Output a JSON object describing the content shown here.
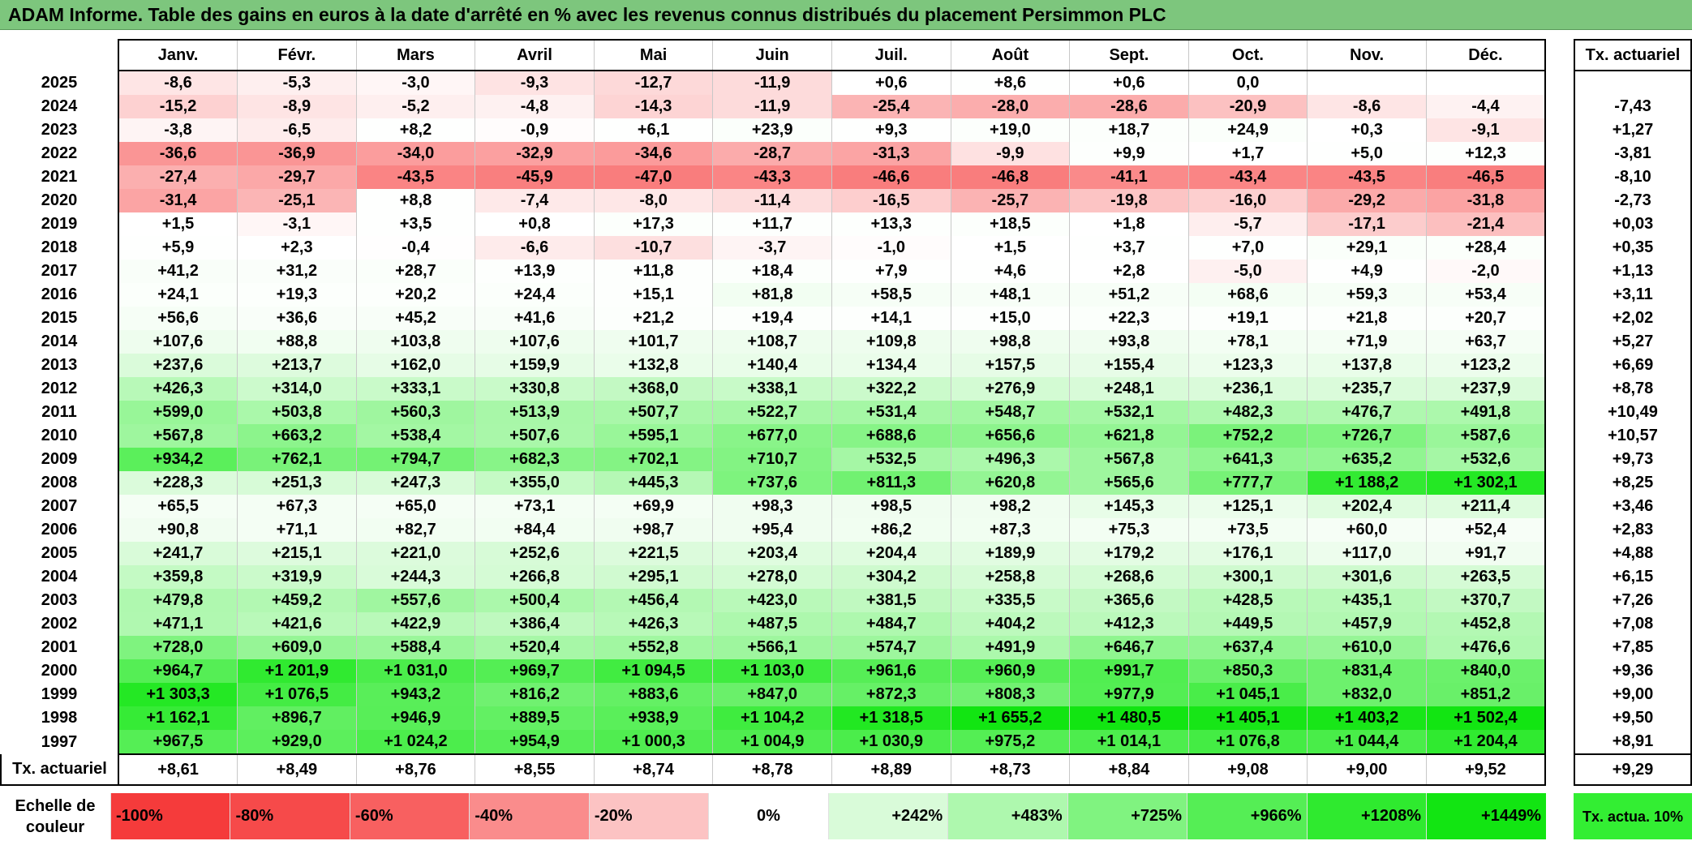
{
  "title": "ADAM Informe. Table des gains en euros à la date d'arrêté en % avec les revenus connus distribués du placement Persimmon PLC",
  "chart_data": {
    "type": "table",
    "columns": [
      "Janv.",
      "Févr.",
      "Mars",
      "Avril",
      "Mai",
      "Juin",
      "Juil.",
      "Août",
      "Sept.",
      "Oct.",
      "Nov.",
      "Déc."
    ],
    "ta_header": "Tx. actuariel",
    "rows": [
      {
        "year": "2025",
        "values": [
          "-8,6",
          "-5,3",
          "-3,0",
          "-9,3",
          "-12,7",
          "-11,9",
          "+0,6",
          "+8,6",
          "+0,6",
          "0,0",
          "",
          ""
        ],
        "ta": ""
      },
      {
        "year": "2024",
        "values": [
          "-15,2",
          "-8,9",
          "-5,2",
          "-4,8",
          "-14,3",
          "-11,9",
          "-25,4",
          "-28,0",
          "-28,6",
          "-20,9",
          "-8,6",
          "-4,4"
        ],
        "ta": "-7,43"
      },
      {
        "year": "2023",
        "values": [
          "-3,8",
          "-6,5",
          "+8,2",
          "-0,9",
          "+6,1",
          "+23,9",
          "+9,3",
          "+19,0",
          "+18,7",
          "+24,9",
          "+0,3",
          "-9,1"
        ],
        "ta": "+1,27"
      },
      {
        "year": "2022",
        "values": [
          "-36,6",
          "-36,9",
          "-34,0",
          "-32,9",
          "-34,6",
          "-28,7",
          "-31,3",
          "-9,9",
          "+9,9",
          "+1,7",
          "+5,0",
          "+12,3"
        ],
        "ta": "-3,81"
      },
      {
        "year": "2021",
        "values": [
          "-27,4",
          "-29,7",
          "-43,5",
          "-45,9",
          "-47,0",
          "-43,3",
          "-46,6",
          "-46,8",
          "-41,1",
          "-43,4",
          "-43,5",
          "-46,5"
        ],
        "ta": "-8,10"
      },
      {
        "year": "2020",
        "values": [
          "-31,4",
          "-25,1",
          "+8,8",
          "-7,4",
          "-8,0",
          "-11,4",
          "-16,5",
          "-25,7",
          "-19,8",
          "-16,0",
          "-29,2",
          "-31,8"
        ],
        "ta": "-2,73"
      },
      {
        "year": "2019",
        "values": [
          "+1,5",
          "-3,1",
          "+3,5",
          "+0,8",
          "+17,3",
          "+11,7",
          "+13,3",
          "+18,5",
          "+1,8",
          "-5,7",
          "-17,1",
          "-21,4"
        ],
        "ta": "+0,03"
      },
      {
        "year": "2018",
        "values": [
          "+5,9",
          "+2,3",
          "-0,4",
          "-6,6",
          "-10,7",
          "-3,7",
          "-1,0",
          "+1,5",
          "+3,7",
          "+7,0",
          "+29,1",
          "+28,4"
        ],
        "ta": "+0,35"
      },
      {
        "year": "2017",
        "values": [
          "+41,2",
          "+31,2",
          "+28,7",
          "+13,9",
          "+11,8",
          "+18,4",
          "+7,9",
          "+4,6",
          "+2,8",
          "-5,0",
          "+4,9",
          "-2,0"
        ],
        "ta": "+1,13"
      },
      {
        "year": "2016",
        "values": [
          "+24,1",
          "+19,3",
          "+20,2",
          "+24,4",
          "+15,1",
          "+81,8",
          "+58,5",
          "+48,1",
          "+51,2",
          "+68,6",
          "+59,3",
          "+53,4"
        ],
        "ta": "+3,11"
      },
      {
        "year": "2015",
        "values": [
          "+56,6",
          "+36,6",
          "+45,2",
          "+41,6",
          "+21,2",
          "+19,4",
          "+14,1",
          "+15,0",
          "+22,3",
          "+19,1",
          "+21,8",
          "+20,7"
        ],
        "ta": "+2,02"
      },
      {
        "year": "2014",
        "values": [
          "+107,6",
          "+88,8",
          "+103,8",
          "+107,6",
          "+101,7",
          "+108,7",
          "+109,8",
          "+98,8",
          "+93,8",
          "+78,1",
          "+71,9",
          "+63,7"
        ],
        "ta": "+5,27"
      },
      {
        "year": "2013",
        "values": [
          "+237,6",
          "+213,7",
          "+162,0",
          "+159,9",
          "+132,8",
          "+140,4",
          "+134,4",
          "+157,5",
          "+155,4",
          "+123,3",
          "+137,8",
          "+123,2"
        ],
        "ta": "+6,69"
      },
      {
        "year": "2012",
        "values": [
          "+426,3",
          "+314,0",
          "+333,1",
          "+330,8",
          "+368,0",
          "+338,1",
          "+322,2",
          "+276,9",
          "+248,1",
          "+236,1",
          "+235,7",
          "+237,9"
        ],
        "ta": "+8,78"
      },
      {
        "year": "2011",
        "values": [
          "+599,0",
          "+503,8",
          "+560,3",
          "+513,9",
          "+507,7",
          "+522,7",
          "+531,4",
          "+548,7",
          "+532,1",
          "+482,3",
          "+476,7",
          "+491,8"
        ],
        "ta": "+10,49"
      },
      {
        "year": "2010",
        "values": [
          "+567,8",
          "+663,2",
          "+538,4",
          "+507,6",
          "+595,1",
          "+677,0",
          "+688,6",
          "+656,6",
          "+621,8",
          "+752,2",
          "+726,7",
          "+587,6"
        ],
        "ta": "+10,57"
      },
      {
        "year": "2009",
        "values": [
          "+934,2",
          "+762,1",
          "+794,7",
          "+682,3",
          "+702,1",
          "+710,7",
          "+532,5",
          "+496,3",
          "+567,8",
          "+641,3",
          "+635,2",
          "+532,6"
        ],
        "ta": "+9,73"
      },
      {
        "year": "2008",
        "values": [
          "+228,3",
          "+251,3",
          "+247,3",
          "+355,0",
          "+445,3",
          "+737,6",
          "+811,3",
          "+620,8",
          "+565,6",
          "+777,7",
          "+1 188,2",
          "+1 302,1"
        ],
        "ta": "+8,25"
      },
      {
        "year": "2007",
        "values": [
          "+65,5",
          "+67,3",
          "+65,0",
          "+73,1",
          "+69,9",
          "+98,3",
          "+98,5",
          "+98,2",
          "+145,3",
          "+125,1",
          "+202,4",
          "+211,4"
        ],
        "ta": "+3,46"
      },
      {
        "year": "2006",
        "values": [
          "+90,8",
          "+71,1",
          "+82,7",
          "+84,4",
          "+98,7",
          "+95,4",
          "+86,2",
          "+87,3",
          "+75,3",
          "+73,5",
          "+60,0",
          "+52,4"
        ],
        "ta": "+2,83"
      },
      {
        "year": "2005",
        "values": [
          "+241,7",
          "+215,1",
          "+221,0",
          "+252,6",
          "+221,5",
          "+203,4",
          "+204,4",
          "+189,9",
          "+179,2",
          "+176,1",
          "+117,0",
          "+91,7"
        ],
        "ta": "+4,88"
      },
      {
        "year": "2004",
        "values": [
          "+359,8",
          "+319,9",
          "+244,3",
          "+266,8",
          "+295,1",
          "+278,0",
          "+304,2",
          "+258,8",
          "+268,6",
          "+300,1",
          "+301,6",
          "+263,5"
        ],
        "ta": "+6,15"
      },
      {
        "year": "2003",
        "values": [
          "+479,8",
          "+459,2",
          "+557,6",
          "+500,4",
          "+456,4",
          "+423,0",
          "+381,5",
          "+335,5",
          "+365,6",
          "+428,5",
          "+435,1",
          "+370,7"
        ],
        "ta": "+7,26"
      },
      {
        "year": "2002",
        "values": [
          "+471,1",
          "+421,6",
          "+422,9",
          "+386,4",
          "+426,3",
          "+487,5",
          "+484,7",
          "+404,2",
          "+412,3",
          "+449,5",
          "+457,9",
          "+452,8"
        ],
        "ta": "+7,08"
      },
      {
        "year": "2001",
        "values": [
          "+728,0",
          "+609,0",
          "+588,4",
          "+520,4",
          "+552,8",
          "+566,1",
          "+574,7",
          "+491,9",
          "+646,7",
          "+637,4",
          "+610,0",
          "+476,6"
        ],
        "ta": "+7,85"
      },
      {
        "year": "2000",
        "values": [
          "+964,7",
          "+1 201,9",
          "+1 031,0",
          "+969,7",
          "+1 094,5",
          "+1 103,0",
          "+961,6",
          "+960,9",
          "+991,7",
          "+850,3",
          "+831,4",
          "+840,0"
        ],
        "ta": "+9,36"
      },
      {
        "year": "1999",
        "values": [
          "+1 303,3",
          "+1 076,5",
          "+943,2",
          "+816,2",
          "+883,6",
          "+847,0",
          "+872,3",
          "+808,3",
          "+977,9",
          "+1 045,1",
          "+832,0",
          "+851,2"
        ],
        "ta": "+9,00"
      },
      {
        "year": "1998",
        "values": [
          "+1 162,1",
          "+896,7",
          "+946,9",
          "+889,5",
          "+938,9",
          "+1 104,2",
          "+1 318,5",
          "+1 655,2",
          "+1 480,5",
          "+1 405,1",
          "+1 403,2",
          "+1 502,4"
        ],
        "ta": "+9,50"
      },
      {
        "year": "1997",
        "values": [
          "+967,5",
          "+929,0",
          "+1 024,2",
          "+954,9",
          "+1 000,3",
          "+1 004,9",
          "+1 030,9",
          "+975,2",
          "+1 014,1",
          "+1 076,8",
          "+1 044,4",
          "+1 204,4"
        ],
        "ta": "+8,91"
      }
    ],
    "ta_row": {
      "label": "Tx. actuariel",
      "values": [
        "+8,61",
        "+8,49",
        "+8,76",
        "+8,55",
        "+8,74",
        "+8,78",
        "+8,89",
        "+8,73",
        "+8,84",
        "+9,08",
        "+9,00",
        "+9,52"
      ],
      "total": "+9,29"
    },
    "color_scale": {
      "label": "Echelle de couleur",
      "stops": [
        {
          "label": "-100%",
          "value": -100,
          "color": "#f53b3b"
        },
        {
          "label": "-80%",
          "value": -80,
          "color": "#f64a4a"
        },
        {
          "label": "-60%",
          "value": -60,
          "color": "#f86060"
        },
        {
          "label": "-40%",
          "value": -40,
          "color": "#fa8c8c"
        },
        {
          "label": "-20%",
          "value": -20,
          "color": "#fcc3c3"
        },
        {
          "label": "0%",
          "value": 0,
          "color": "#ffffff"
        },
        {
          "label": "+242%",
          "value": 242,
          "color": "#d9fbd9"
        },
        {
          "label": "+483%",
          "value": 483,
          "color": "#aef8ae"
        },
        {
          "label": "+725%",
          "value": 725,
          "color": "#80f380"
        },
        {
          "label": "+966%",
          "value": 966,
          "color": "#55ee55"
        },
        {
          "label": "+1208%",
          "value": 1208,
          "color": "#2fea2f"
        },
        {
          "label": "+1449%",
          "value": 1449,
          "color": "#12e512"
        }
      ],
      "ta_label": "Tx. actua. 10%",
      "ta_color": "#33ee33"
    }
  }
}
